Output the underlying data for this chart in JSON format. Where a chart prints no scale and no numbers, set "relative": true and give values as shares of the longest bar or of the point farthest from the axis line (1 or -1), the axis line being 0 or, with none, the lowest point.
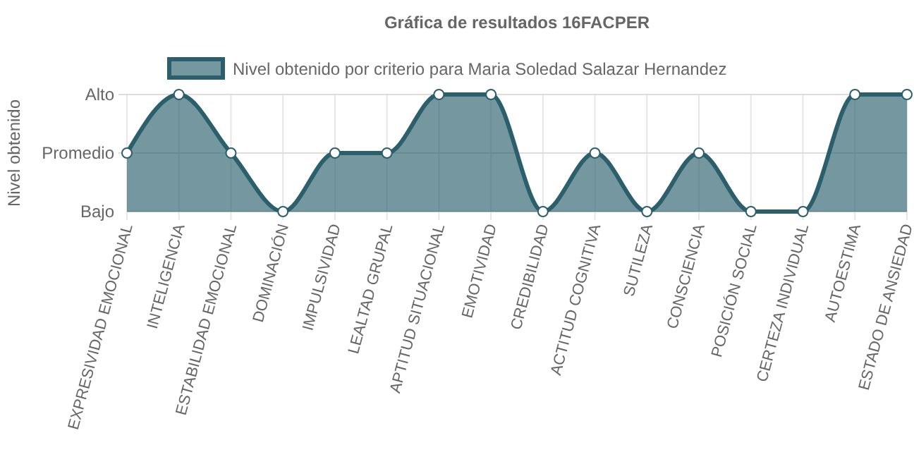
{
  "chart_data": {
    "type": "area",
    "title": "Gráfica de resultados 16FACPER",
    "ylabel": "Nivel obtenido",
    "categories": [
      "EXPRESIVIDAD EMOCIONAL",
      "INTELIGENCIA",
      "ESTABILIDAD EMOCIONAL",
      "DOMINACIÓN",
      "IMPULSIVIDAD",
      "LEALTAD GRUPAL",
      "APTITUD SITUACIONAL",
      "EMOTIVIDAD",
      "CREDIBILIDAD",
      "ACTITUD COGNITIVA",
      "SUTILEZA",
      "CONSCIENCIA",
      "POSICIÓN SOCIAL",
      "CERTEZA INDIVIDUAL",
      "AUTOESTIMA",
      "ESTADO DE ANSIEDAD"
    ],
    "series": [
      {
        "name": "Nivel obtenido por criterio para Maria Soledad Salazar Hernandez",
        "color": "#2b5f6b",
        "values": [
          0.5,
          1,
          0.5,
          0,
          0.5,
          0.5,
          1,
          1,
          0,
          0.5,
          0,
          0.5,
          0,
          0,
          1,
          1
        ]
      }
    ],
    "relative": true,
    "y_categories": [
      "Alto",
      "Promedio",
      "Bajo"
    ],
    "ref_lines": [
      {
        "axis": "y",
        "value": 0.5,
        "color": "#dddddd"
      },
      {
        "axis": "y",
        "value": 1,
        "color": "#dddddd"
      }
    ],
    "grid": "x",
    "legend": "top",
    "marker": "circle"
  }
}
